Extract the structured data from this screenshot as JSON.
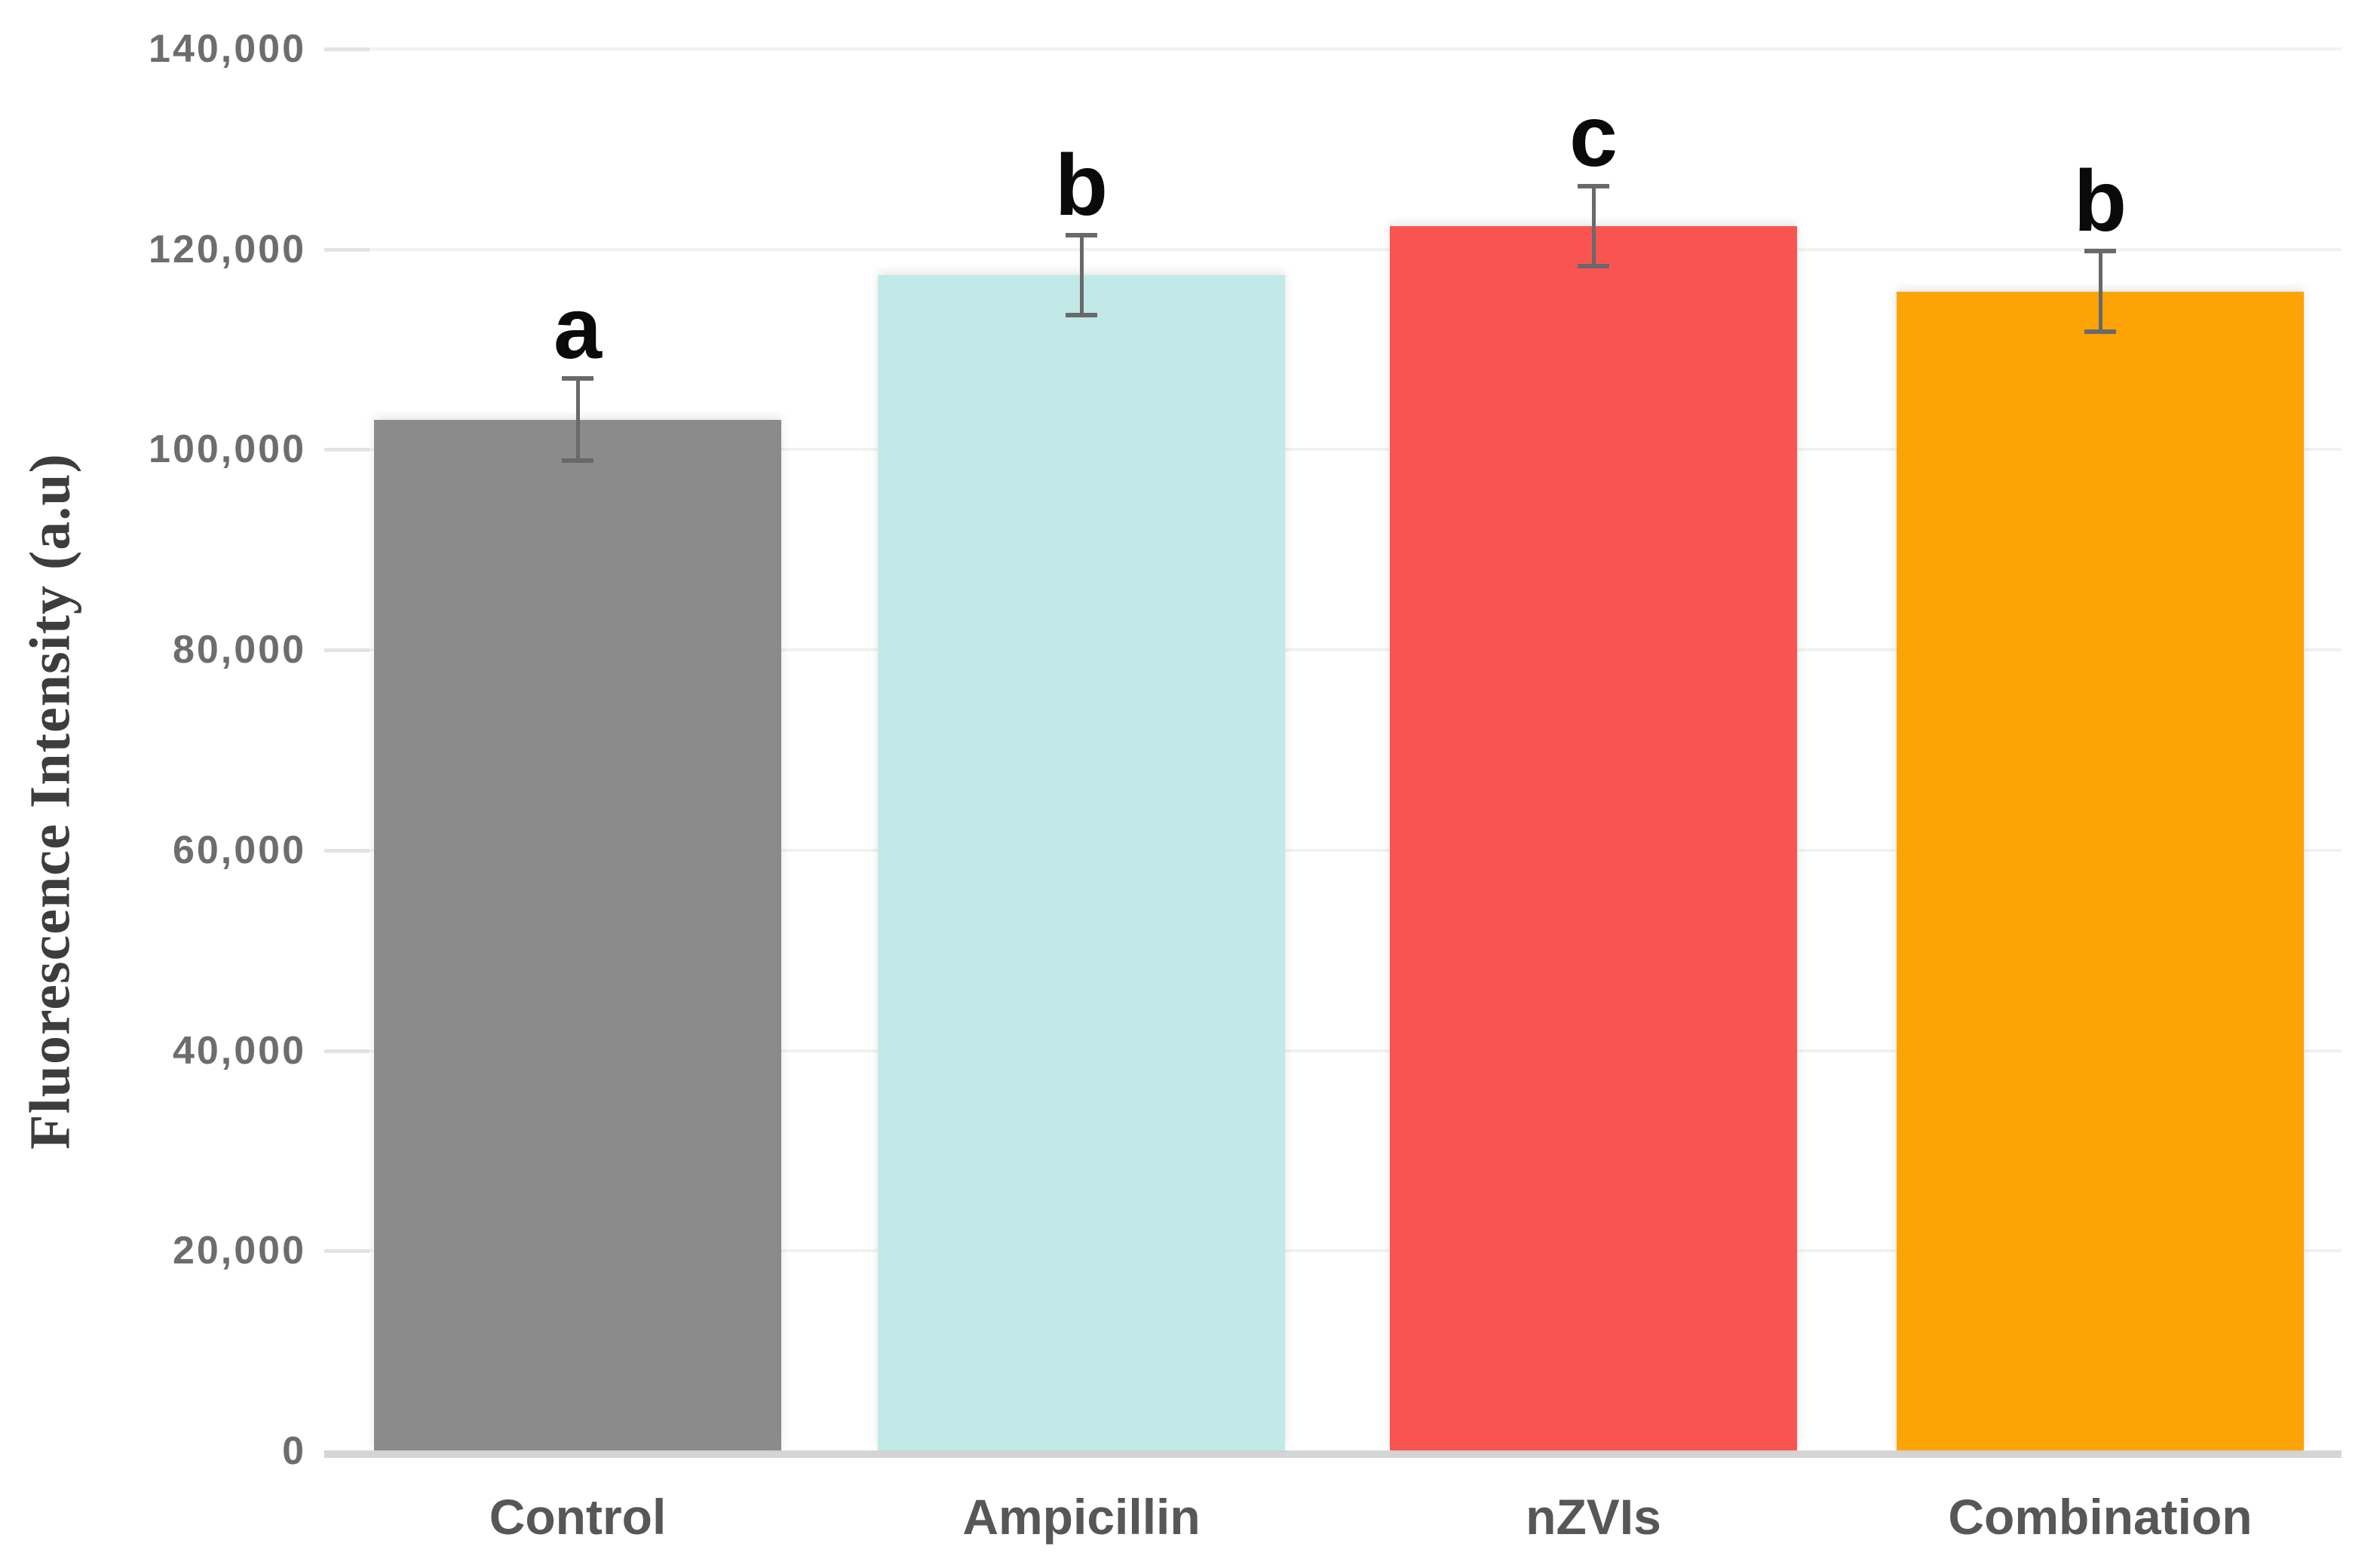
{
  "chart_data": {
    "type": "bar",
    "title": "",
    "ylabel": "Fluorescence Intensity (a.u)",
    "xlabel": "",
    "categories": [
      "Control",
      "Ampicillin",
      "nZVIs",
      "Combination"
    ],
    "values": [
      103000,
      117400,
      122300,
      115800
    ],
    "errors": [
      4100,
      4000,
      4000,
      4000
    ],
    "significance_letters": [
      "a",
      "b",
      "c",
      "b"
    ],
    "bar_colors": [
      "#8b8b8b",
      "#c0e9e7",
      "#fa5450",
      "#fca305"
    ],
    "ylim": [
      0,
      140000
    ],
    "ytick_step": 20000,
    "ytick_labels": [
      "0",
      "20,000",
      "40,000",
      "60,000",
      "80,000",
      "100,000",
      "120,000",
      "140,000"
    ],
    "grid": "horizontal",
    "legend": "none",
    "colors": {
      "gridline": "#f2f2f2",
      "tick_stub": "#e3e3e3",
      "axis_band": "#d5d5d5",
      "error_bar": "#696969",
      "y_tick_label": "#6d6d6d",
      "x_label": "#575757",
      "y_title": "#3d3d3d",
      "sig_letter": "#0a0a0a",
      "background": "#ffffff"
    }
  }
}
